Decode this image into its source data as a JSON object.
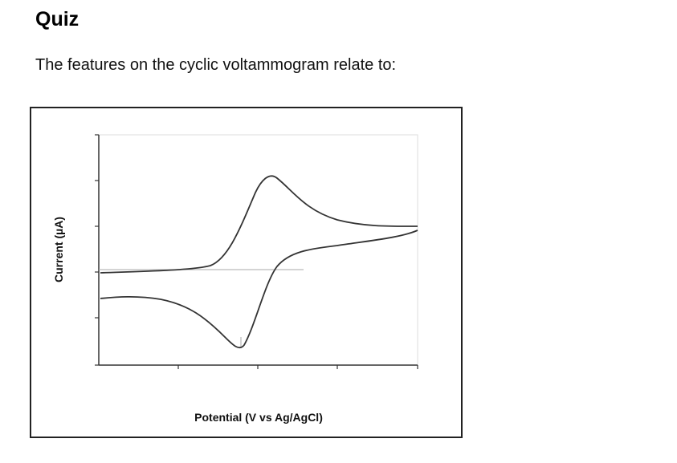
{
  "header": {
    "title": "Quiz"
  },
  "question": {
    "text": "The features on the cyclic voltammogram relate to:"
  },
  "figure": {
    "y_label": "Current (µA)",
    "x_label": "Potential (V vs Ag/AgCl)"
  }
}
